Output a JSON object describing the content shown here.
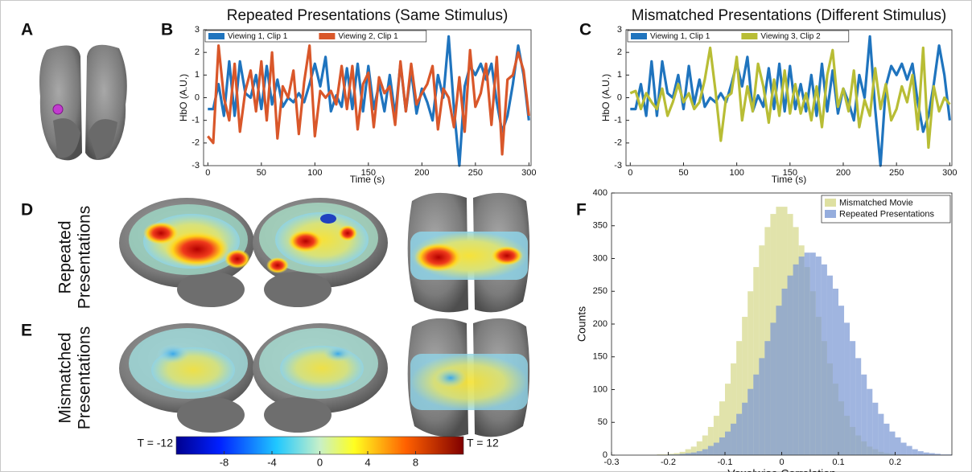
{
  "panel_labels": [
    "A",
    "B",
    "C",
    "D",
    "E",
    "F"
  ],
  "row_labels": [
    [
      "Repeated",
      "Presentations"
    ],
    [
      "Mismatched",
      "Presentations"
    ]
  ],
  "colorbar": {
    "min_label": "T = -12",
    "max_label": "T = 12",
    "lim": [
      -12,
      12
    ],
    "ticks": [
      -8,
      -4,
      0,
      4,
      8
    ]
  },
  "chart_data": [
    {
      "type": "line",
      "title": "Repeated Presentations (Same Stimulus)",
      "xlabel": "Time (s)",
      "ylabel": "HbO (A.U.)",
      "xlim": [
        -4,
        302
      ],
      "ylim": [
        -3,
        3
      ],
      "xticks": [
        0,
        50,
        100,
        150,
        200,
        250,
        300
      ],
      "yticks": [
        -3,
        -2,
        -1,
        0,
        1,
        2,
        3
      ],
      "legend": "upper left",
      "x": [
        0,
        5,
        10,
        15,
        20,
        25,
        30,
        35,
        40,
        45,
        50,
        55,
        60,
        65,
        70,
        75,
        80,
        85,
        90,
        95,
        100,
        105,
        110,
        115,
        120,
        125,
        130,
        135,
        140,
        145,
        150,
        155,
        160,
        165,
        170,
        175,
        180,
        185,
        190,
        195,
        200,
        205,
        210,
        215,
        220,
        225,
        230,
        235,
        240,
        245,
        250,
        255,
        260,
        265,
        270,
        275,
        280,
        285,
        290,
        295,
        300
      ],
      "series": [
        {
          "name": "Viewing 1, Clip 1",
          "color": "#1f74be",
          "values": [
            -0.5,
            -0.5,
            0.6,
            -0.8,
            1.6,
            -0.8,
            1.6,
            0.2,
            0.0,
            1.0,
            -0.5,
            1.4,
            -0.3,
            0.8,
            -0.4,
            0.0,
            -0.2,
            0.2,
            -0.2,
            0.6,
            1.5,
            0.5,
            1.8,
            -0.6,
            0.1,
            -0.4,
            1.3,
            -0.5,
            1.5,
            -0.6,
            1.4,
            -0.5,
            0.6,
            -0.6,
            1.0,
            -0.8,
            1.5,
            -0.6,
            1.2,
            -0.7,
            0.4,
            -0.2,
            -1.0,
            1.0,
            0.0,
            2.7,
            -0.5,
            -3.0,
            0.5,
            1.4,
            1.0,
            1.5,
            0.8,
            1.5,
            -0.2,
            -1.5,
            -0.8,
            0.6,
            2.3,
            1.0,
            -1.0
          ]
        },
        {
          "name": "Viewing 2, Clip 1",
          "color": "#d9572a",
          "values": [
            -1.7,
            -2.0,
            2.3,
            0.0,
            -1.0,
            1.5,
            -1.5,
            0.3,
            1.2,
            -0.6,
            1.6,
            -1.0,
            2.0,
            -1.8,
            0.5,
            0.0,
            1.2,
            -1.6,
            0.7,
            2.3,
            -1.7,
            0.3,
            0.0,
            0.3,
            -0.3,
            1.4,
            -0.5,
            1.4,
            -1.4,
            0.6,
            1.1,
            -1.3,
            0.9,
            0.2,
            0.5,
            -1.2,
            1.6,
            -0.6,
            1.5,
            -0.3,
            0.2,
            0.6,
            1.4,
            -1.4,
            0.4,
            0.0,
            -1.3,
            0.9,
            -1.5,
            2.1,
            -0.4,
            0.2,
            1.5,
            -1.2,
            1.8,
            -2.5,
            0.8,
            1.0,
            2.0,
            1.2,
            -0.8
          ]
        }
      ]
    },
    {
      "type": "line",
      "title": "Mismatched Presentations (Different Stimulus)",
      "xlabel": "Time (s)",
      "ylabel": "HbO (A.U.)",
      "xlim": [
        -4,
        302
      ],
      "ylim": [
        -3,
        3
      ],
      "xticks": [
        0,
        50,
        100,
        150,
        200,
        250,
        300
      ],
      "yticks": [
        -3,
        -2,
        -1,
        0,
        1,
        2,
        3
      ],
      "legend": "upper left",
      "x": [
        0,
        5,
        10,
        15,
        20,
        25,
        30,
        35,
        40,
        45,
        50,
        55,
        60,
        65,
        70,
        75,
        80,
        85,
        90,
        95,
        100,
        105,
        110,
        115,
        120,
        125,
        130,
        135,
        140,
        145,
        150,
        155,
        160,
        165,
        170,
        175,
        180,
        185,
        190,
        195,
        200,
        205,
        210,
        215,
        220,
        225,
        230,
        235,
        240,
        245,
        250,
        255,
        260,
        265,
        270,
        275,
        280,
        285,
        290,
        295,
        300
      ],
      "series": [
        {
          "name": "Viewing 1, Clip 1",
          "color": "#1f74be",
          "values": [
            -0.5,
            -0.5,
            0.6,
            -0.8,
            1.6,
            -0.8,
            1.6,
            0.2,
            0.0,
            1.0,
            -0.5,
            1.4,
            -0.3,
            0.8,
            -0.4,
            0.0,
            -0.2,
            0.2,
            -0.2,
            0.6,
            1.5,
            0.5,
            1.8,
            -0.6,
            0.1,
            -0.4,
            1.3,
            -0.5,
            1.5,
            -0.6,
            1.4,
            -0.5,
            0.6,
            -0.6,
            1.0,
            -0.8,
            1.5,
            -0.6,
            1.2,
            -0.7,
            0.4,
            -0.2,
            -1.0,
            1.0,
            0.0,
            2.7,
            -0.5,
            -3.0,
            0.5,
            1.4,
            1.0,
            1.5,
            0.8,
            1.5,
            -0.2,
            -1.5,
            -0.8,
            0.6,
            2.3,
            1.0,
            -1.0
          ]
        },
        {
          "name": "Viewing 3, Clip 2",
          "color": "#b8bd35",
          "values": [
            0.2,
            0.3,
            -0.5,
            0.2,
            -0.2,
            -0.5,
            0.4,
            -0.8,
            -0.2,
            0.6,
            -0.2,
            0.2,
            -0.5,
            -0.2,
            0.8,
            2.2,
            0.3,
            -1.9,
            0.0,
            0.2,
            1.8,
            -1.0,
            0.5,
            -0.6,
            1.5,
            0.5,
            -1.1,
            0.8,
            -0.8,
            1.2,
            -0.7,
            0.6,
            -0.7,
            0.2,
            -1.0,
            0.5,
            -1.3,
            1.0,
            2.1,
            -0.4,
            0.4,
            -0.6,
            1.2,
            -1.3,
            -0.1,
            -0.8,
            1.3,
            -0.5,
            0.6,
            -1.0,
            -0.5,
            0.5,
            -0.2,
            1.0,
            -1.4,
            2.2,
            -2.2,
            0.5,
            -0.6,
            0.0,
            -0.3
          ]
        }
      ]
    },
    {
      "type": "histogram",
      "xlabel": "Voxelwise Correlation",
      "ylabel": "Counts",
      "xlim": [
        -0.3,
        0.3
      ],
      "ylim": [
        0,
        400
      ],
      "xticks": [
        -0.3,
        -0.2,
        -0.1,
        0,
        0.1,
        0.2
      ],
      "yticks": [
        0,
        50,
        100,
        150,
        200,
        250,
        300,
        350,
        400
      ],
      "legend": "upper right",
      "bins": [
        -0.27,
        -0.26,
        -0.25,
        -0.24,
        -0.23,
        -0.22,
        -0.21,
        -0.2,
        -0.19,
        -0.18,
        -0.17,
        -0.16,
        -0.15,
        -0.14,
        -0.13,
        -0.12,
        -0.11,
        -0.1,
        -0.09,
        -0.08,
        -0.07,
        -0.06,
        -0.05,
        -0.04,
        -0.03,
        -0.02,
        -0.01,
        0,
        0.01,
        0.02,
        0.03,
        0.04,
        0.05,
        0.06,
        0.07,
        0.08,
        0.09,
        0.1,
        0.11,
        0.12,
        0.13,
        0.14,
        0.15,
        0.16,
        0.17,
        0.18,
        0.19,
        0.2,
        0.21,
        0.22,
        0.23,
        0.24,
        0.25,
        0.26,
        0.27,
        0.28,
        0.29,
        0.3
      ],
      "series": [
        {
          "name": "Mismatched Movie",
          "color": "#d6d88a",
          "values": [
            0,
            0,
            0,
            0,
            0,
            1,
            1,
            2,
            3,
            5,
            9,
            13,
            21,
            30,
            43,
            60,
            82,
            109,
            140,
            174,
            211,
            250,
            287,
            320,
            348,
            368,
            379,
            379,
            368,
            348,
            320,
            287,
            250,
            211,
            174,
            140,
            109,
            82,
            60,
            43,
            30,
            21,
            13,
            9,
            5,
            3,
            2,
            1,
            1,
            0,
            0,
            0,
            0,
            0,
            0,
            0,
            0
          ]
        },
        {
          "name": "Repeated Presentations",
          "color": "#7b98d4",
          "values": [
            0,
            0,
            0,
            0,
            0,
            0,
            0,
            1,
            1,
            2,
            3,
            4,
            6,
            9,
            14,
            19,
            27,
            36,
            48,
            63,
            80,
            101,
            123,
            148,
            174,
            202,
            228,
            254,
            274,
            291,
            303,
            309,
            309,
            303,
            291,
            274,
            254,
            228,
            202,
            174,
            148,
            123,
            101,
            80,
            63,
            48,
            36,
            27,
            19,
            14,
            9,
            6,
            4,
            3,
            2,
            1,
            1
          ]
        }
      ]
    }
  ]
}
